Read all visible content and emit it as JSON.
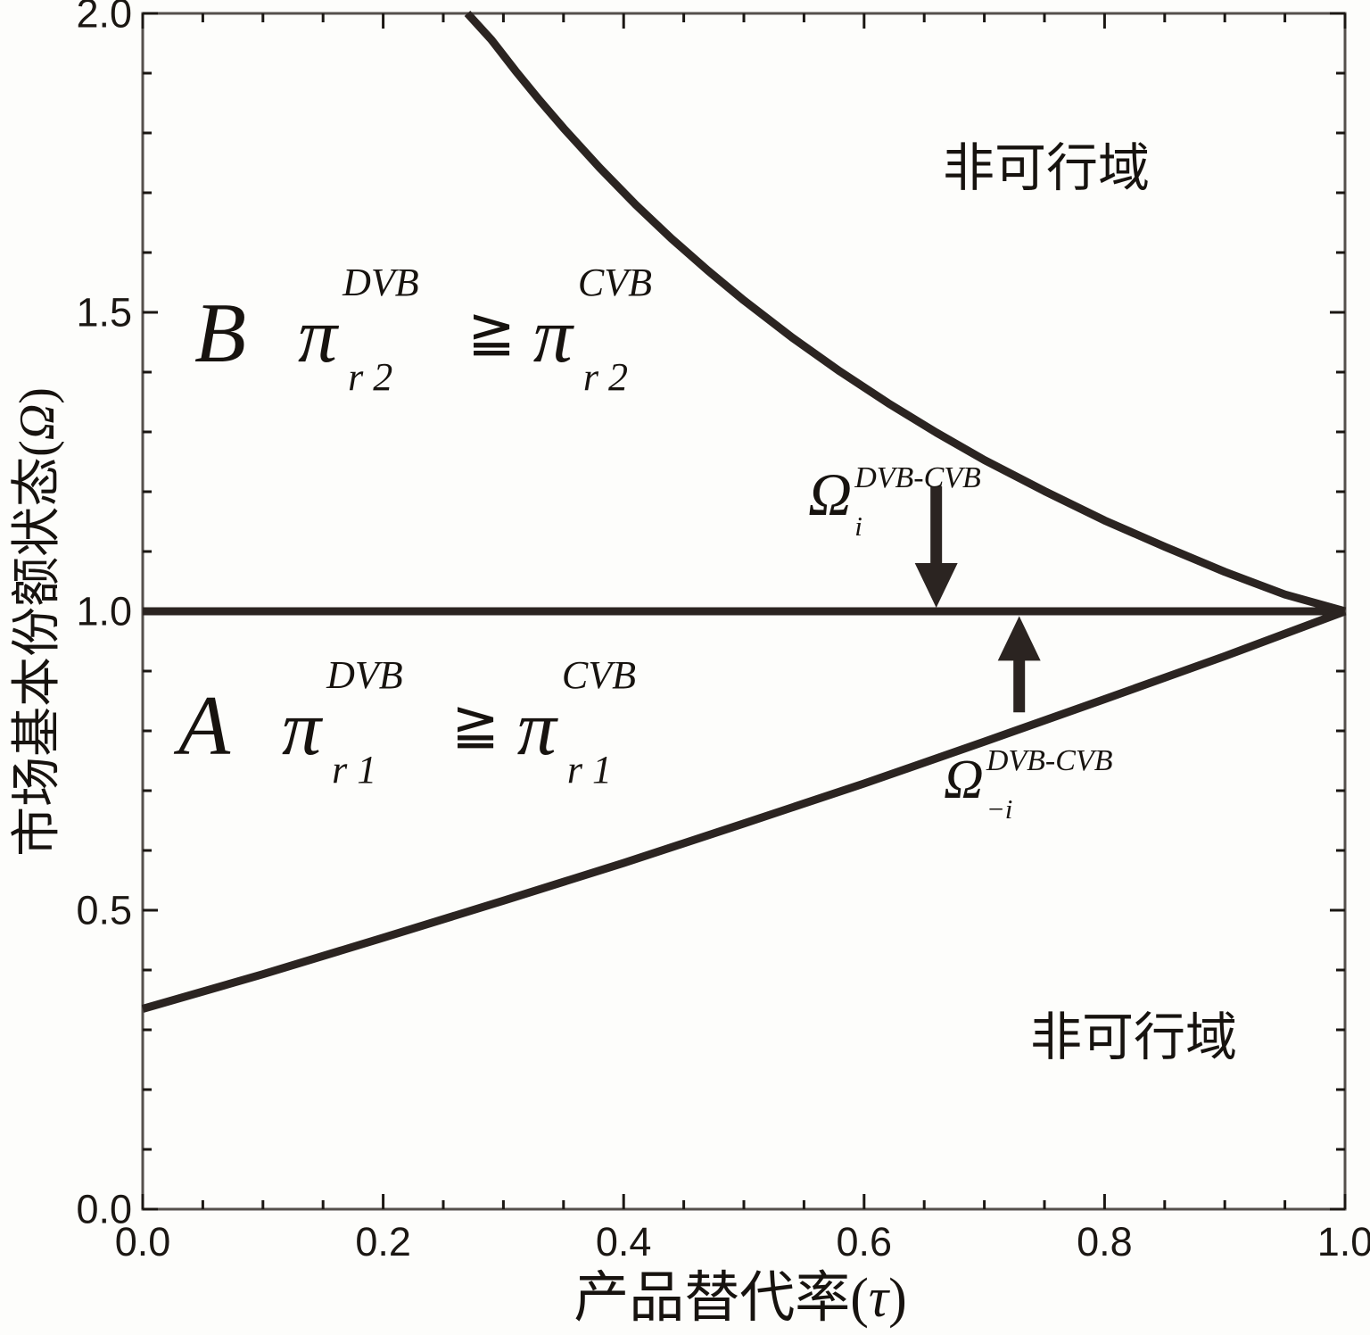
{
  "colors": {
    "background": "#fdfdfb",
    "frame": "#55504c",
    "tick": "#1b1713",
    "line": "#2b2421",
    "text": "#17130f"
  },
  "axes": {
    "x": {
      "label_parts": [
        "产品替代率(",
        "τ",
        ")"
      ],
      "tick_labels": [
        "0.0",
        "0.2",
        "0.4",
        "0.6",
        "0.8",
        "1.0"
      ]
    },
    "y": {
      "label_parts": [
        "市场基本份额状态(",
        "Ω",
        ")"
      ],
      "tick_labels": [
        "0.0",
        "0.5",
        "1.0",
        "1.5",
        "2.0"
      ]
    }
  },
  "regions": {
    "b": {
      "letter": "B",
      "pi1": "π",
      "sup1": "DVB",
      "sub1": "r 2",
      "rel": "≧",
      "pi2": "π",
      "sup2": "CVB",
      "sub2": "r 2"
    },
    "a": {
      "letter": "A",
      "pi1": "π",
      "sup1": "DVB",
      "sub1": "r 1",
      "rel": "≧",
      "pi2": "π",
      "sup2": "CVB",
      "sub2": "r 1"
    },
    "infeasible_top": "非可行域",
    "infeasible_bottom": "非可行域"
  },
  "annotations": {
    "omega_i": {
      "base": "Ω",
      "sup": "DVB-CVB",
      "sub": "i"
    },
    "omega_neg_i": {
      "base": "Ω",
      "sup": "DVB-CVB",
      "sub": "−i"
    }
  },
  "chart_data": {
    "type": "line",
    "title": "",
    "xlabel": "产品替代率(τ)",
    "ylabel": "市场基本份额状态(Ω)",
    "xlim": [
      0,
      1
    ],
    "ylim": [
      0,
      2
    ],
    "x_major_step": 0.2,
    "x_minor_step": 0.05,
    "y_major_step": 0.5,
    "y_minor_step": 0.1,
    "grid": false,
    "legend": "none",
    "series": [
      {
        "name": "omega-threshold-line",
        "points": [
          [
            0,
            1.0
          ],
          [
            1,
            1.0
          ]
        ]
      },
      {
        "name": "upper-boundary-curve",
        "points": [
          [
            0.27,
            2.0
          ],
          [
            0.29,
            1.956
          ],
          [
            0.31,
            1.904
          ],
          [
            0.33,
            1.855
          ],
          [
            0.35,
            1.808
          ],
          [
            0.38,
            1.742
          ],
          [
            0.41,
            1.68
          ],
          [
            0.44,
            1.623
          ],
          [
            0.47,
            1.57
          ],
          [
            0.5,
            1.52
          ],
          [
            0.54,
            1.458
          ],
          [
            0.58,
            1.401
          ],
          [
            0.62,
            1.348
          ],
          [
            0.66,
            1.299
          ],
          [
            0.7,
            1.253
          ],
          [
            0.75,
            1.201
          ],
          [
            0.8,
            1.152
          ],
          [
            0.85,
            1.108
          ],
          [
            0.9,
            1.066
          ],
          [
            0.95,
            1.028
          ],
          [
            1.0,
            1.0
          ]
        ]
      },
      {
        "name": "lower-boundary-curve",
        "points": [
          [
            0,
            0.335
          ],
          [
            0.1,
            0.393
          ],
          [
            0.2,
            0.454
          ],
          [
            0.3,
            0.516
          ],
          [
            0.4,
            0.579
          ],
          [
            0.5,
            0.645
          ],
          [
            0.6,
            0.712
          ],
          [
            0.7,
            0.782
          ],
          [
            0.8,
            0.853
          ],
          [
            0.9,
            0.925
          ],
          [
            1.0,
            1.0
          ]
        ]
      }
    ],
    "arrows": [
      {
        "name": "omega-i-arrow",
        "direction": "down",
        "x": 0.66,
        "y_from": 1.209,
        "y_to": 1.006
      },
      {
        "name": "omega-neg-i-arrow",
        "direction": "up",
        "x": 0.729,
        "y_from": 0.831,
        "y_to": 0.992
      }
    ]
  }
}
